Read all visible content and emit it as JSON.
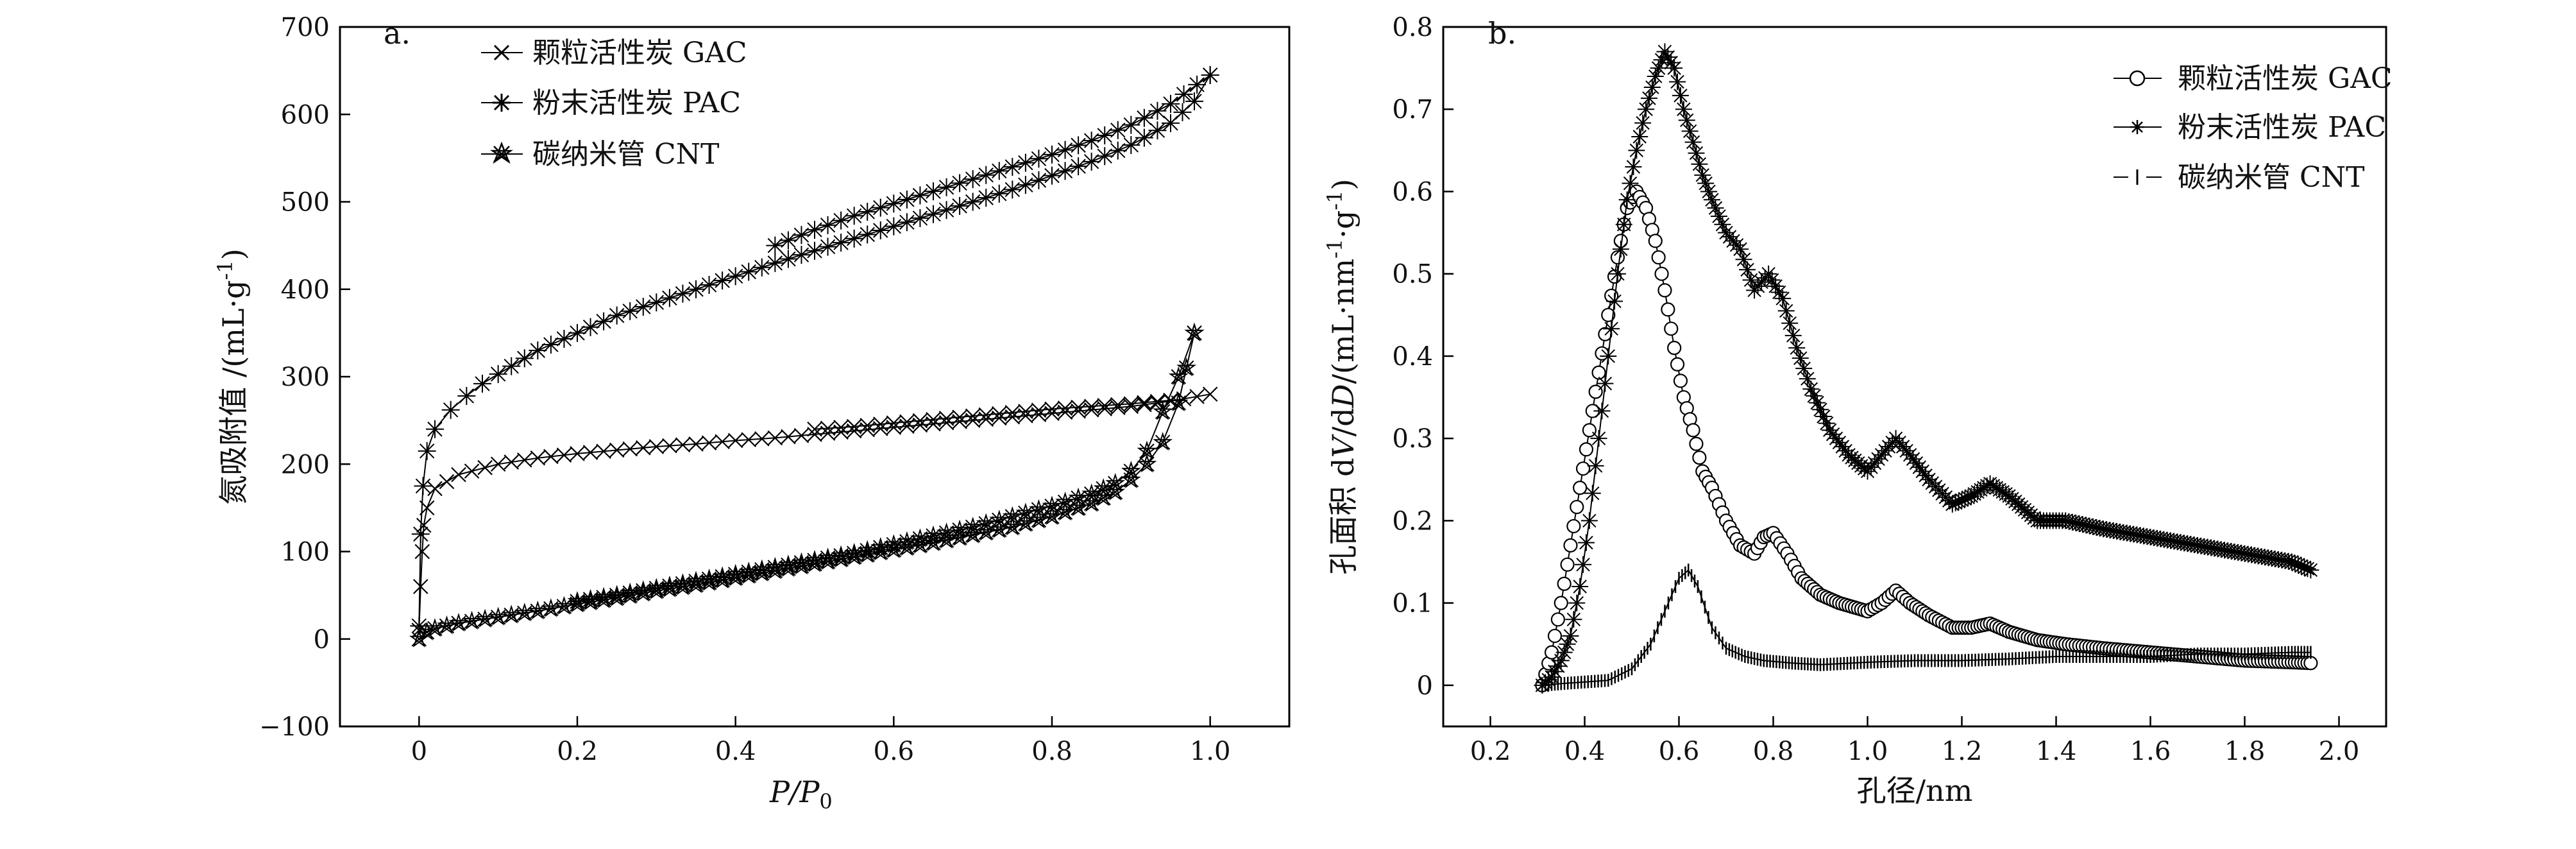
{
  "chart_data": [
    {
      "panel": "a.",
      "type": "line",
      "xlabel": "P/P0",
      "xlabel_main": "P/P",
      "xlabel_sub": "0",
      "ylabel": "氮吸附值 /(mL·g-1)",
      "ylabel_main": "氮吸附值 /(mL·g",
      "ylabel_sup": "-1",
      "ylabel_close": ")",
      "xlim": [
        -0.1,
        1.1
      ],
      "ylim": [
        -100,
        700
      ],
      "xticks": [
        "0",
        "0.2",
        "0.4",
        "0.6",
        "0.8",
        "1.0"
      ],
      "xtick_values": [
        0,
        0.2,
        0.4,
        0.6,
        0.8,
        1.0
      ],
      "yticks": [
        "−100",
        "0",
        "100",
        "200",
        "300",
        "400",
        "500",
        "600",
        "700"
      ],
      "ytick_values": [
        -100,
        0,
        100,
        200,
        300,
        400,
        500,
        600,
        700
      ],
      "legend_position": "top-center",
      "series": [
        {
          "name": "颗粒活性炭 GAC",
          "marker": "x",
          "adsorption": [
            [
              0.0,
              10
            ],
            [
              0.002,
              60
            ],
            [
              0.004,
              100
            ],
            [
              0.006,
              130
            ],
            [
              0.01,
              150
            ],
            [
              0.02,
              172
            ],
            [
              0.05,
              188
            ],
            [
              0.1,
              200
            ],
            [
              0.15,
              207
            ],
            [
              0.2,
              212
            ],
            [
              0.25,
              216
            ],
            [
              0.3,
              220
            ],
            [
              0.35,
              223
            ],
            [
              0.4,
              227
            ],
            [
              0.45,
              230
            ],
            [
              0.5,
              234
            ],
            [
              0.55,
              238
            ],
            [
              0.6,
              242
            ],
            [
              0.65,
              246
            ],
            [
              0.7,
              250
            ],
            [
              0.75,
              254
            ],
            [
              0.8,
              258
            ],
            [
              0.85,
              262
            ],
            [
              0.9,
              266
            ],
            [
              0.95,
              272
            ],
            [
              1.0,
              280
            ]
          ],
          "desorption": [
            [
              0.5,
              240
            ],
            [
              0.55,
              243
            ],
            [
              0.6,
              247
            ],
            [
              0.65,
              251
            ],
            [
              0.7,
              255
            ],
            [
              0.75,
              259
            ],
            [
              0.8,
              263
            ],
            [
              0.85,
              266
            ],
            [
              0.9,
              269
            ],
            [
              0.95,
              273
            ]
          ]
        },
        {
          "name": "粉末活性炭 PAC",
          "marker": "asterisk",
          "adsorption": [
            [
              0.0,
              15
            ],
            [
              0.002,
              120
            ],
            [
              0.005,
              175
            ],
            [
              0.01,
              215
            ],
            [
              0.02,
              240
            ],
            [
              0.04,
              262
            ],
            [
              0.06,
              278
            ],
            [
              0.08,
              292
            ],
            [
              0.1,
              303
            ],
            [
              0.15,
              330
            ],
            [
              0.2,
              350
            ],
            [
              0.25,
              370
            ],
            [
              0.3,
              385
            ],
            [
              0.35,
              400
            ],
            [
              0.4,
              415
            ],
            [
              0.45,
              430
            ],
            [
              0.5,
              444
            ],
            [
              0.55,
              458
            ],
            [
              0.6,
              472
            ],
            [
              0.65,
              486
            ],
            [
              0.7,
              500
            ],
            [
              0.75,
              514
            ],
            [
              0.8,
              530
            ],
            [
              0.85,
              546
            ],
            [
              0.9,
              565
            ],
            [
              0.95,
              590
            ],
            [
              0.98,
              615
            ],
            [
              1.0,
              645
            ]
          ],
          "desorption": [
            [
              0.45,
              450
            ],
            [
              0.5,
              468
            ],
            [
              0.55,
              484
            ],
            [
              0.6,
              498
            ],
            [
              0.65,
              512
            ],
            [
              0.7,
              526
            ],
            [
              0.75,
              540
            ],
            [
              0.8,
              554
            ],
            [
              0.85,
              570
            ],
            [
              0.9,
              588
            ],
            [
              0.95,
              612
            ],
            [
              1.0,
              645
            ]
          ]
        },
        {
          "name": "碳纳米管 CNT",
          "marker": "star",
          "adsorption": [
            [
              0.0,
              0
            ],
            [
              0.01,
              8
            ],
            [
              0.02,
              12
            ],
            [
              0.05,
              18
            ],
            [
              0.1,
              25
            ],
            [
              0.15,
              32
            ],
            [
              0.2,
              40
            ],
            [
              0.25,
              47
            ],
            [
              0.3,
              55
            ],
            [
              0.35,
              62
            ],
            [
              0.4,
              70
            ],
            [
              0.45,
              78
            ],
            [
              0.5,
              86
            ],
            [
              0.55,
              94
            ],
            [
              0.6,
              102
            ],
            [
              0.65,
              110
            ],
            [
              0.7,
              119
            ],
            [
              0.75,
              128
            ],
            [
              0.8,
              140
            ],
            [
              0.85,
              155
            ],
            [
              0.88,
              168
            ],
            [
              0.9,
              182
            ],
            [
              0.92,
              200
            ],
            [
              0.94,
              225
            ],
            [
              0.96,
              270
            ],
            [
              0.97,
              310
            ],
            [
              0.98,
              350
            ]
          ],
          "desorption": [
            [
              0.98,
              350
            ],
            [
              0.96,
              300
            ],
            [
              0.94,
              260
            ],
            [
              0.92,
              215
            ],
            [
              0.9,
              192
            ],
            [
              0.88,
              178
            ],
            [
              0.85,
              166
            ],
            [
              0.8,
              152
            ],
            [
              0.75,
              140
            ],
            [
              0.7,
              128
            ],
            [
              0.65,
              118
            ],
            [
              0.6,
              108
            ],
            [
              0.55,
              98
            ],
            [
              0.5,
              90
            ],
            [
              0.45,
              82
            ],
            [
              0.4,
              74
            ],
            [
              0.35,
              66
            ],
            [
              0.3,
              58
            ],
            [
              0.25,
              50
            ],
            [
              0.2,
              43
            ]
          ]
        }
      ]
    },
    {
      "panel": "b.",
      "type": "line",
      "xlabel": "孔径/nm",
      "ylabel": "孔面积 dV/dD/(mL·nm-1·g-1)",
      "ylabel_main": "孔面积 d",
      "ylabel_v": "V",
      "ylabel_mid": "/d",
      "ylabel_d": "D",
      "ylabel_units": "/(mL·nm",
      "ylabel_sup1": "-1",
      "ylabel_g": "·g",
      "ylabel_sup2": "-1",
      "ylabel_close": ")",
      "xlim": [
        0.1,
        2.1
      ],
      "ylim": [
        -0.05,
        0.8
      ],
      "xticks": [
        "0.2",
        "0.4",
        "0.6",
        "0.8",
        "1.0",
        "1.2",
        "1.4",
        "1.6",
        "1.8",
        "2.0"
      ],
      "xtick_values": [
        0.2,
        0.4,
        0.6,
        0.8,
        1.0,
        1.2,
        1.4,
        1.6,
        1.8,
        2.0
      ],
      "yticks": [
        "0",
        "0.1",
        "0.2",
        "0.3",
        "0.4",
        "0.5",
        "0.6",
        "0.7",
        "0.8"
      ],
      "ytick_values": [
        0,
        0.1,
        0.2,
        0.3,
        0.4,
        0.5,
        0.6,
        0.7,
        0.8
      ],
      "legend_position": "top-right",
      "series": [
        {
          "name": "颗粒活性炭 GAC",
          "marker": "circle",
          "points": [
            [
              0.31,
              0.0
            ],
            [
              0.33,
              0.04
            ],
            [
              0.35,
              0.1
            ],
            [
              0.37,
              0.17
            ],
            [
              0.39,
              0.24
            ],
            [
              0.41,
              0.31
            ],
            [
              0.43,
              0.38
            ],
            [
              0.45,
              0.45
            ],
            [
              0.47,
              0.52
            ],
            [
              0.49,
              0.58
            ],
            [
              0.51,
              0.6
            ],
            [
              0.53,
              0.58
            ],
            [
              0.55,
              0.54
            ],
            [
              0.57,
              0.48
            ],
            [
              0.59,
              0.41
            ],
            [
              0.61,
              0.35
            ],
            [
              0.63,
              0.31
            ],
            [
              0.65,
              0.26
            ],
            [
              0.67,
              0.24
            ],
            [
              0.7,
              0.2
            ],
            [
              0.73,
              0.17
            ],
            [
              0.76,
              0.16
            ],
            [
              0.78,
              0.18
            ],
            [
              0.8,
              0.185
            ],
            [
              0.83,
              0.16
            ],
            [
              0.86,
              0.13
            ],
            [
              0.9,
              0.11
            ],
            [
              0.94,
              0.1
            ],
            [
              1.0,
              0.09
            ],
            [
              1.03,
              0.1
            ],
            [
              1.06,
              0.115
            ],
            [
              1.09,
              0.1
            ],
            [
              1.13,
              0.085
            ],
            [
              1.18,
              0.07
            ],
            [
              1.22,
              0.07
            ],
            [
              1.26,
              0.075
            ],
            [
              1.3,
              0.065
            ],
            [
              1.36,
              0.055
            ],
            [
              1.42,
              0.05
            ],
            [
              1.5,
              0.045
            ],
            [
              1.6,
              0.04
            ],
            [
              1.7,
              0.035
            ],
            [
              1.8,
              0.03
            ],
            [
              1.9,
              0.028
            ],
            [
              1.94,
              0.027
            ]
          ]
        },
        {
          "name": "粉末活性炭 PAC",
          "marker": "asterisk",
          "points": [
            [
              0.31,
              0.0
            ],
            [
              0.33,
              0.01
            ],
            [
              0.35,
              0.03
            ],
            [
              0.37,
              0.06
            ],
            [
              0.39,
              0.12
            ],
            [
              0.41,
              0.2
            ],
            [
              0.43,
              0.3
            ],
            [
              0.45,
              0.4
            ],
            [
              0.47,
              0.5
            ],
            [
              0.49,
              0.59
            ],
            [
              0.51,
              0.65
            ],
            [
              0.53,
              0.7
            ],
            [
              0.55,
              0.74
            ],
            [
              0.57,
              0.77
            ],
            [
              0.59,
              0.75
            ],
            [
              0.61,
              0.7
            ],
            [
              0.63,
              0.66
            ],
            [
              0.65,
              0.62
            ],
            [
              0.67,
              0.59
            ],
            [
              0.7,
              0.55
            ],
            [
              0.73,
              0.53
            ],
            [
              0.76,
              0.48
            ],
            [
              0.79,
              0.5
            ],
            [
              0.82,
              0.47
            ],
            [
              0.85,
              0.41
            ],
            [
              0.88,
              0.36
            ],
            [
              0.92,
              0.31
            ],
            [
              0.96,
              0.28
            ],
            [
              1.0,
              0.26
            ],
            [
              1.03,
              0.28
            ],
            [
              1.06,
              0.3
            ],
            [
              1.09,
              0.28
            ],
            [
              1.13,
              0.25
            ],
            [
              1.18,
              0.22
            ],
            [
              1.22,
              0.23
            ],
            [
              1.26,
              0.245
            ],
            [
              1.3,
              0.23
            ],
            [
              1.36,
              0.2
            ],
            [
              1.42,
              0.2
            ],
            [
              1.5,
              0.19
            ],
            [
              1.6,
              0.18
            ],
            [
              1.7,
              0.17
            ],
            [
              1.8,
              0.16
            ],
            [
              1.9,
              0.15
            ],
            [
              1.94,
              0.14
            ]
          ]
        },
        {
          "name": "碳纳米管 CNT",
          "marker": "vbar",
          "points": [
            [
              0.31,
              0.0
            ],
            [
              0.35,
              0.002
            ],
            [
              0.4,
              0.004
            ],
            [
              0.45,
              0.006
            ],
            [
              0.5,
              0.02
            ],
            [
              0.54,
              0.05
            ],
            [
              0.57,
              0.09
            ],
            [
              0.6,
              0.13
            ],
            [
              0.62,
              0.14
            ],
            [
              0.64,
              0.12
            ],
            [
              0.67,
              0.07
            ],
            [
              0.7,
              0.045
            ],
            [
              0.74,
              0.035
            ],
            [
              0.78,
              0.03
            ],
            [
              0.84,
              0.027
            ],
            [
              0.9,
              0.025
            ],
            [
              1.0,
              0.028
            ],
            [
              1.1,
              0.03
            ],
            [
              1.2,
              0.03
            ],
            [
              1.3,
              0.032
            ],
            [
              1.4,
              0.035
            ],
            [
              1.5,
              0.035
            ],
            [
              1.6,
              0.035
            ],
            [
              1.7,
              0.038
            ],
            [
              1.8,
              0.038
            ],
            [
              1.9,
              0.04
            ],
            [
              1.94,
              0.04
            ]
          ]
        }
      ]
    }
  ]
}
